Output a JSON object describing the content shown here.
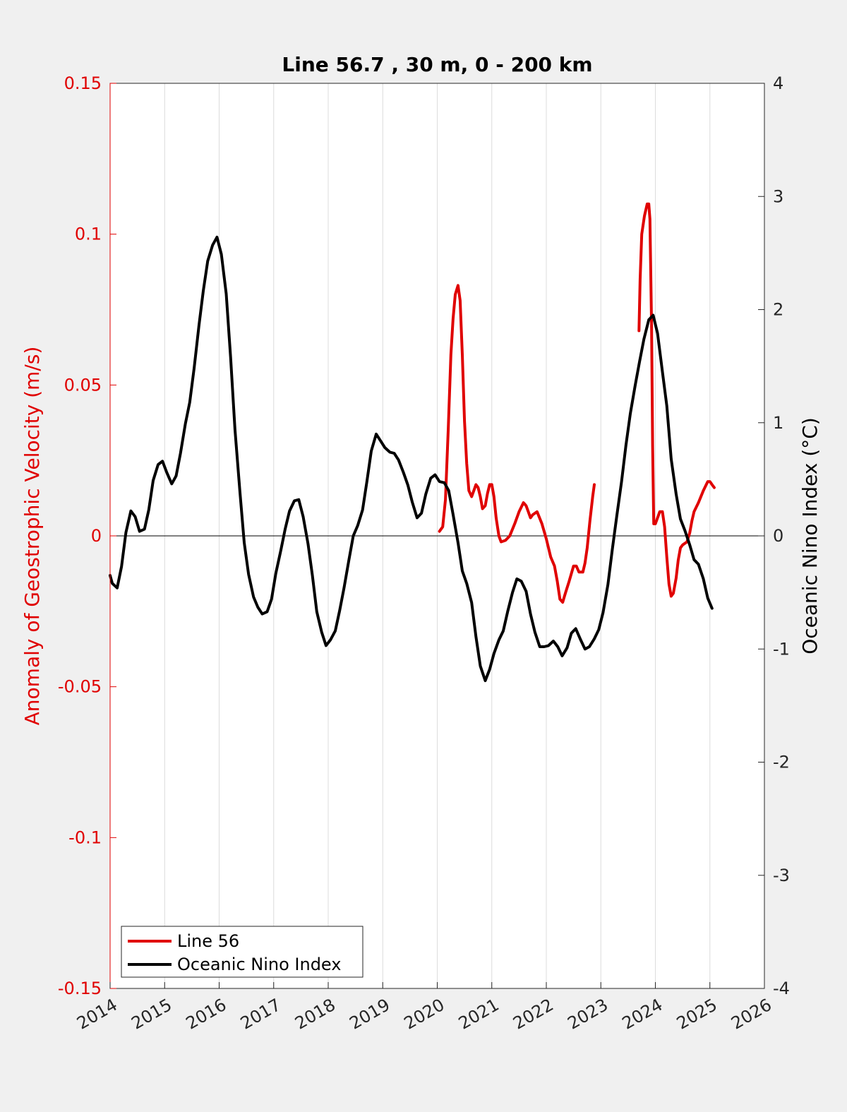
{
  "chart_data": {
    "type": "line",
    "title": "Line 56.7 , 30 m, 0 - 200 km",
    "ylabel_left": "Anomaly of Geostrophic Velocity (m/s)",
    "ylabel_right": "Oceanic Nino Index (°C)",
    "xlim": [
      2014,
      2026
    ],
    "ylim_left": [
      -0.15,
      0.15
    ],
    "ylim_right": [
      -4,
      4
    ],
    "x_ticks": [
      "2014",
      "2015",
      "2016",
      "2017",
      "2018",
      "2019",
      "2020",
      "2021",
      "2022",
      "2023",
      "2024",
      "2025",
      "2026"
    ],
    "y_ticks_left": [
      "0.15",
      "0.1",
      "0.05",
      "0",
      "-0.05",
      "-0.1",
      "-0.15"
    ],
    "y_ticks_right": [
      "4",
      "3",
      "2",
      "1",
      "0",
      "-1",
      "-2",
      "-3",
      "-4"
    ],
    "grid": "vertical",
    "legend_position": "bottom-left",
    "colors": {
      "left_axis": "#e00000",
      "line56": "#e00000",
      "oni": "#000000",
      "plot_bg": "#ffffff",
      "figure_bg": "#f0f0f0"
    },
    "series": [
      {
        "name": "Line 56",
        "axis": "left",
        "segments": [
          [
            [
              2020.04,
              0.0015
            ],
            [
              2020.1,
              0.003
            ],
            [
              2020.15,
              0.012
            ],
            [
              2020.2,
              0.035
            ],
            [
              2020.25,
              0.06
            ],
            [
              2020.29,
              0.072
            ],
            [
              2020.33,
              0.08
            ],
            [
              2020.38,
              0.083
            ],
            [
              2020.42,
              0.078
            ],
            [
              2020.46,
              0.06
            ],
            [
              2020.5,
              0.038
            ],
            [
              2020.54,
              0.024
            ],
            [
              2020.58,
              0.015
            ],
            [
              2020.63,
              0.013
            ],
            [
              2020.67,
              0.015
            ],
            [
              2020.71,
              0.017
            ],
            [
              2020.75,
              0.016
            ],
            [
              2020.79,
              0.013
            ],
            [
              2020.83,
              0.009
            ],
            [
              2020.88,
              0.01
            ],
            [
              2020.92,
              0.014
            ],
            [
              2020.96,
              0.017
            ],
            [
              2021.0,
              0.017
            ],
            [
              2021.04,
              0.013
            ],
            [
              2021.08,
              0.006
            ],
            [
              2021.13,
              0.0
            ],
            [
              2021.17,
              -0.002
            ],
            [
              2021.25,
              -0.0015
            ],
            [
              2021.33,
              0.0
            ],
            [
              2021.42,
              0.004
            ],
            [
              2021.5,
              0.008
            ],
            [
              2021.58,
              0.011
            ],
            [
              2021.63,
              0.01
            ],
            [
              2021.67,
              0.008
            ],
            [
              2021.71,
              0.006
            ],
            [
              2021.75,
              0.007
            ],
            [
              2021.83,
              0.008
            ],
            [
              2021.92,
              0.004
            ],
            [
              2022.0,
              -0.001
            ],
            [
              2022.08,
              -0.007
            ],
            [
              2022.15,
              -0.01
            ],
            [
              2022.2,
              -0.015
            ],
            [
              2022.25,
              -0.021
            ],
            [
              2022.3,
              -0.022
            ],
            [
              2022.35,
              -0.019
            ],
            [
              2022.42,
              -0.015
            ],
            [
              2022.5,
              -0.01
            ],
            [
              2022.55,
              -0.01
            ],
            [
              2022.6,
              -0.012
            ],
            [
              2022.67,
              -0.012
            ],
            [
              2022.71,
              -0.009
            ],
            [
              2022.75,
              -0.004
            ],
            [
              2022.8,
              0.005
            ],
            [
              2022.85,
              0.013
            ],
            [
              2022.88,
              0.017
            ]
          ],
          [
            [
              2023.7,
              0.068
            ],
            [
              2023.72,
              0.085
            ],
            [
              2023.75,
              0.1
            ],
            [
              2023.8,
              0.106
            ],
            [
              2023.85,
              0.11
            ],
            [
              2023.88,
              0.11
            ],
            [
              2023.9,
              0.105
            ],
            [
              2023.93,
              0.07
            ],
            [
              2023.95,
              0.03
            ],
            [
              2023.97,
              0.004
            ],
            [
              2024.0,
              0.004
            ],
            [
              2024.04,
              0.006
            ],
            [
              2024.08,
              0.008
            ],
            [
              2024.13,
              0.008
            ],
            [
              2024.17,
              0.003
            ],
            [
              2024.21,
              -0.007
            ],
            [
              2024.25,
              -0.016
            ],
            [
              2024.29,
              -0.02
            ],
            [
              2024.33,
              -0.019
            ],
            [
              2024.38,
              -0.014
            ],
            [
              2024.42,
              -0.008
            ],
            [
              2024.46,
              -0.004
            ],
            [
              2024.5,
              -0.003
            ],
            [
              2024.58,
              -0.002
            ],
            [
              2024.63,
              0.001
            ],
            [
              2024.67,
              0.005
            ],
            [
              2024.71,
              0.008
            ],
            [
              2024.79,
              0.011
            ],
            [
              2024.88,
              0.015
            ],
            [
              2024.96,
              0.018
            ],
            [
              2025.0,
              0.018
            ],
            [
              2025.04,
              0.017
            ],
            [
              2025.08,
              0.016
            ]
          ]
        ]
      },
      {
        "name": "Oceanic Nino Index",
        "axis": "right",
        "points": [
          [
            2014.0,
            -0.35
          ],
          [
            2014.04,
            -0.42
          ],
          [
            2014.13,
            -0.46
          ],
          [
            2014.21,
            -0.27
          ],
          [
            2014.29,
            0.03
          ],
          [
            2014.38,
            0.22
          ],
          [
            2014.46,
            0.17
          ],
          [
            2014.54,
            0.04
          ],
          [
            2014.63,
            0.06
          ],
          [
            2014.71,
            0.23
          ],
          [
            2014.79,
            0.49
          ],
          [
            2014.88,
            0.63
          ],
          [
            2014.96,
            0.66
          ],
          [
            2015.04,
            0.56
          ],
          [
            2015.13,
            0.46
          ],
          [
            2015.21,
            0.53
          ],
          [
            2015.29,
            0.73
          ],
          [
            2015.38,
            0.99
          ],
          [
            2015.46,
            1.18
          ],
          [
            2015.54,
            1.48
          ],
          [
            2015.63,
            1.86
          ],
          [
            2015.71,
            2.17
          ],
          [
            2015.79,
            2.43
          ],
          [
            2015.88,
            2.57
          ],
          [
            2015.96,
            2.64
          ],
          [
            2016.04,
            2.49
          ],
          [
            2016.13,
            2.14
          ],
          [
            2016.21,
            1.58
          ],
          [
            2016.29,
            0.94
          ],
          [
            2016.38,
            0.39
          ],
          [
            2016.46,
            -0.06
          ],
          [
            2016.54,
            -0.34
          ],
          [
            2016.63,
            -0.54
          ],
          [
            2016.71,
            -0.63
          ],
          [
            2016.79,
            -0.69
          ],
          [
            2016.88,
            -0.67
          ],
          [
            2016.96,
            -0.56
          ],
          [
            2017.04,
            -0.33
          ],
          [
            2017.13,
            -0.13
          ],
          [
            2017.21,
            0.06
          ],
          [
            2017.29,
            0.22
          ],
          [
            2017.38,
            0.31
          ],
          [
            2017.46,
            0.32
          ],
          [
            2017.54,
            0.17
          ],
          [
            2017.63,
            -0.07
          ],
          [
            2017.71,
            -0.35
          ],
          [
            2017.79,
            -0.67
          ],
          [
            2017.88,
            -0.85
          ],
          [
            2017.96,
            -0.97
          ],
          [
            2018.04,
            -0.92
          ],
          [
            2018.13,
            -0.84
          ],
          [
            2018.21,
            -0.66
          ],
          [
            2018.29,
            -0.46
          ],
          [
            2018.38,
            -0.21
          ],
          [
            2018.46,
            0.0
          ],
          [
            2018.54,
            0.09
          ],
          [
            2018.63,
            0.23
          ],
          [
            2018.71,
            0.48
          ],
          [
            2018.79,
            0.75
          ],
          [
            2018.88,
            0.9
          ],
          [
            2018.96,
            0.84
          ],
          [
            2019.04,
            0.78
          ],
          [
            2019.13,
            0.74
          ],
          [
            2019.21,
            0.73
          ],
          [
            2019.29,
            0.67
          ],
          [
            2019.38,
            0.56
          ],
          [
            2019.46,
            0.45
          ],
          [
            2019.54,
            0.3
          ],
          [
            2019.63,
            0.16
          ],
          [
            2019.71,
            0.2
          ],
          [
            2019.79,
            0.37
          ],
          [
            2019.88,
            0.51
          ],
          [
            2019.96,
            0.54
          ],
          [
            2020.04,
            0.48
          ],
          [
            2020.13,
            0.47
          ],
          [
            2020.21,
            0.4
          ],
          [
            2020.29,
            0.19
          ],
          [
            2020.38,
            -0.06
          ],
          [
            2020.46,
            -0.31
          ],
          [
            2020.54,
            -0.42
          ],
          [
            2020.63,
            -0.59
          ],
          [
            2020.71,
            -0.89
          ],
          [
            2020.79,
            -1.15
          ],
          [
            2020.88,
            -1.28
          ],
          [
            2020.96,
            -1.18
          ],
          [
            2021.04,
            -1.04
          ],
          [
            2021.13,
            -0.92
          ],
          [
            2021.21,
            -0.84
          ],
          [
            2021.29,
            -0.67
          ],
          [
            2021.38,
            -0.5
          ],
          [
            2021.46,
            -0.38
          ],
          [
            2021.54,
            -0.4
          ],
          [
            2021.63,
            -0.49
          ],
          [
            2021.71,
            -0.69
          ],
          [
            2021.79,
            -0.85
          ],
          [
            2021.88,
            -0.98
          ],
          [
            2021.96,
            -0.98
          ],
          [
            2022.04,
            -0.97
          ],
          [
            2022.13,
            -0.93
          ],
          [
            2022.21,
            -0.98
          ],
          [
            2022.29,
            -1.06
          ],
          [
            2022.38,
            -0.99
          ],
          [
            2022.46,
            -0.86
          ],
          [
            2022.54,
            -0.82
          ],
          [
            2022.63,
            -0.92
          ],
          [
            2022.71,
            -1.0
          ],
          [
            2022.79,
            -0.98
          ],
          [
            2022.88,
            -0.91
          ],
          [
            2022.96,
            -0.83
          ],
          [
            2023.04,
            -0.68
          ],
          [
            2023.13,
            -0.43
          ],
          [
            2023.21,
            -0.12
          ],
          [
            2023.29,
            0.17
          ],
          [
            2023.38,
            0.48
          ],
          [
            2023.46,
            0.8
          ],
          [
            2023.54,
            1.08
          ],
          [
            2023.63,
            1.33
          ],
          [
            2023.71,
            1.54
          ],
          [
            2023.79,
            1.74
          ],
          [
            2023.88,
            1.91
          ],
          [
            2023.96,
            1.95
          ],
          [
            2024.04,
            1.79
          ],
          [
            2024.13,
            1.45
          ],
          [
            2024.21,
            1.15
          ],
          [
            2024.29,
            0.68
          ],
          [
            2024.38,
            0.37
          ],
          [
            2024.46,
            0.15
          ],
          [
            2024.54,
            0.05
          ],
          [
            2024.63,
            -0.08
          ],
          [
            2024.71,
            -0.21
          ],
          [
            2024.79,
            -0.25
          ],
          [
            2024.88,
            -0.38
          ],
          [
            2024.96,
            -0.55
          ],
          [
            2025.04,
            -0.64
          ]
        ]
      }
    ]
  }
}
